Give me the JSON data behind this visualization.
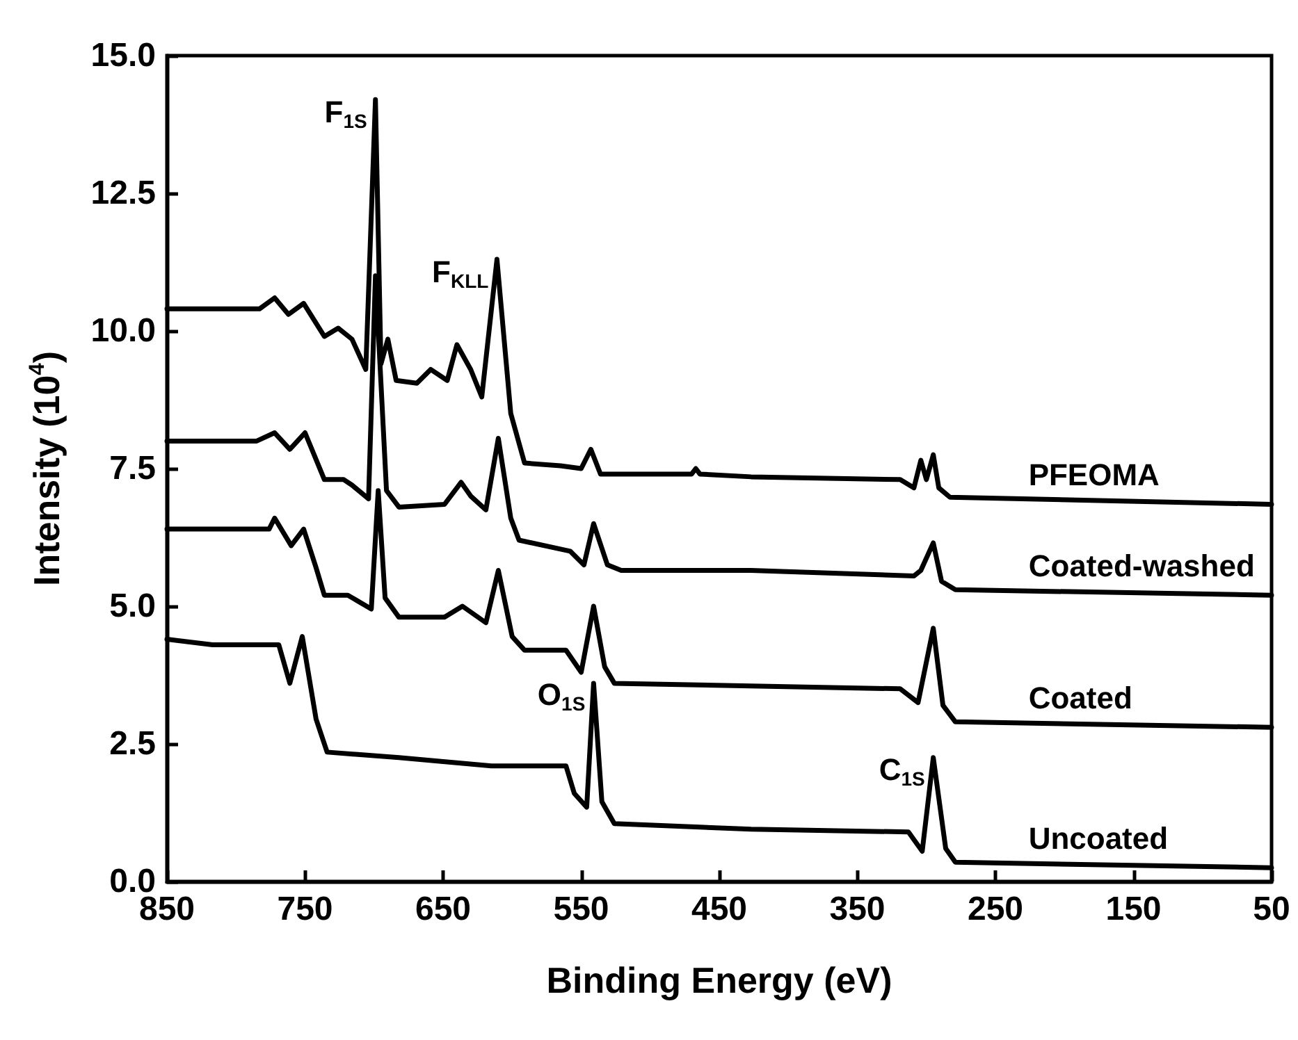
{
  "chart_data": {
    "type": "line",
    "xlabel": "Binding Energy (eV)",
    "ylabel": "Intensity (10$^{4}$)",
    "xlim": [
      850,
      50
    ],
    "xticks": [
      850,
      750,
      650,
      550,
      450,
      350,
      250,
      150,
      50
    ],
    "ylim": [
      0,
      15
    ],
    "yticks": [
      {
        "value": 0,
        "label": "0.0"
      },
      {
        "value": 2.5,
        "label": "2.5"
      },
      {
        "value": 5,
        "label": "5.0"
      },
      {
        "value": 7.5,
        "label": "7.5"
      },
      {
        "value": 10,
        "label": "10.0"
      },
      {
        "value": 12.5,
        "label": "12.5"
      },
      {
        "value": 15,
        "label": "15.0"
      }
    ],
    "grid": false,
    "legend": false,
    "marker": "none",
    "line_style": "solid",
    "series": [
      {
        "name": "PFEOMA",
        "color": "#000000",
        "x": [
          850,
          783,
          772,
          762,
          751,
          736,
          726,
          716,
          706,
          699,
          695,
          690,
          684,
          669,
          659,
          647,
          640,
          630,
          622,
          611,
          601,
          591,
          565,
          550,
          543,
          536,
          470,
          467,
          464,
          427,
          319,
          309,
          304,
          300,
          295,
          291,
          283,
          50
        ],
        "values": [
          10.4,
          10.4,
          10.6,
          10.3,
          10.5,
          9.9,
          10.05,
          9.85,
          9.3,
          14.2,
          9.4,
          9.85,
          9.1,
          9.05,
          9.3,
          9.1,
          9.75,
          9.3,
          8.8,
          11.3,
          8.5,
          7.6,
          7.55,
          7.5,
          7.85,
          7.4,
          7.4,
          7.5,
          7.4,
          7.35,
          7.3,
          7.15,
          7.65,
          7.3,
          7.75,
          7.15,
          6.98,
          6.85
        ]
      },
      {
        "name": "Coated-washed",
        "color": "#000000",
        "x": [
          850,
          785,
          772,
          761,
          750,
          736,
          722,
          716,
          704,
          699,
          691,
          682,
          649,
          637,
          630,
          619,
          610,
          601,
          595,
          558,
          548,
          541,
          531,
          521,
          427,
          309,
          304,
          295,
          289,
          279,
          50
        ],
        "values": [
          8.0,
          8.0,
          8.15,
          7.85,
          8.15,
          7.3,
          7.3,
          7.2,
          6.95,
          11.0,
          7.1,
          6.8,
          6.85,
          7.25,
          7.0,
          6.75,
          8.05,
          6.6,
          6.2,
          6.0,
          5.75,
          6.5,
          5.75,
          5.65,
          5.65,
          5.55,
          5.65,
          6.15,
          5.45,
          5.3,
          5.2
        ]
      },
      {
        "name": "Coated",
        "color": "#000000",
        "x": [
          850,
          776,
          772,
          760,
          751,
          742,
          736,
          719,
          702,
          697,
          692,
          682,
          649,
          636,
          619,
          610,
          600,
          591,
          561,
          550,
          541,
          533,
          526,
          427,
          319,
          306,
          295,
          288,
          279,
          50
        ],
        "values": [
          6.4,
          6.4,
          6.6,
          6.1,
          6.4,
          5.7,
          5.2,
          5.2,
          4.95,
          7.1,
          5.15,
          4.8,
          4.8,
          5.0,
          4.7,
          5.65,
          4.45,
          4.2,
          4.2,
          3.8,
          5.0,
          3.9,
          3.6,
          3.55,
          3.5,
          3.25,
          4.6,
          3.2,
          2.9,
          2.8
        ]
      },
      {
        "name": "Uncoated",
        "color": "#000000",
        "x": [
          850,
          817,
          769,
          761,
          752,
          742,
          734,
          682,
          615,
          561,
          555,
          546,
          541,
          535,
          526,
          427,
          313,
          303,
          295,
          286,
          279,
          50
        ],
        "values": [
          4.4,
          4.3,
          4.3,
          3.6,
          4.45,
          2.95,
          2.35,
          2.25,
          2.1,
          2.1,
          1.6,
          1.35,
          3.6,
          1.45,
          1.05,
          0.95,
          0.9,
          0.55,
          2.25,
          0.6,
          0.35,
          0.25
        ]
      }
    ],
    "annotations": [
      {
        "text": "F$_{1S}$",
        "x": 699,
        "y": 14.2
      },
      {
        "text": "F$_{KLL}$",
        "x": 611,
        "y": 11.3
      },
      {
        "text": "O$_{1S}$",
        "x": 541,
        "y": 3.6
      },
      {
        "text": "C$_{1S}$",
        "x": 295,
        "y": 2.25
      }
    ]
  }
}
